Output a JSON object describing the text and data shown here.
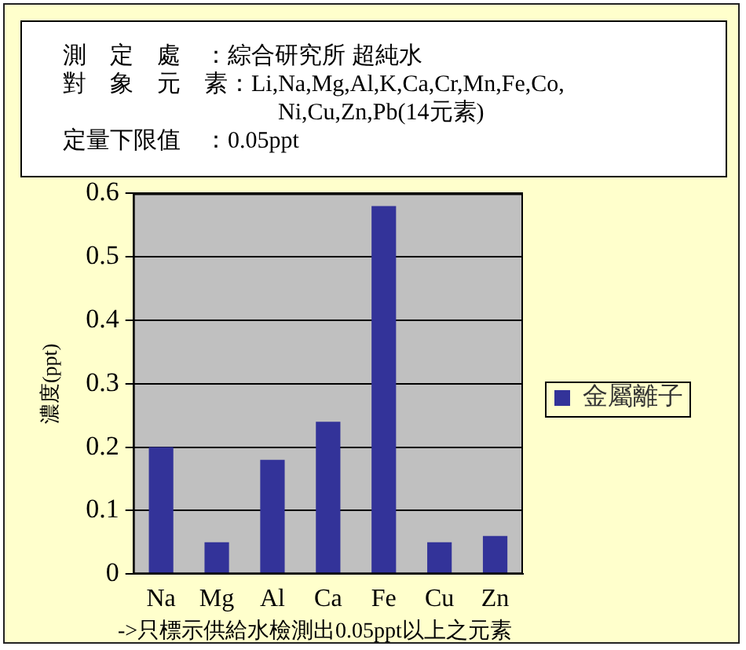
{
  "chart_data": {
    "type": "bar",
    "categories": [
      "Na",
      "Mg",
      "Al",
      "Ca",
      "Fe",
      "Cu",
      "Zn"
    ],
    "series": [
      {
        "name": "金屬離子",
        "color": "#333399",
        "values": [
          0.2,
          0.05,
          0.18,
          0.24,
          0.58,
          0.05,
          0.06
        ]
      }
    ],
    "ylabel": "濃度(ppt)",
    "ylim": [
      0,
      0.6
    ],
    "yticks": [
      0,
      0.1,
      0.2,
      0.3,
      0.4,
      0.5,
      0.6
    ],
    "grid": "y",
    "legend": "right",
    "annotations": [
      "測　定　處　：綜合研究所 超純水",
      "對　象　元　素：Li,Na,Mg,Al,K,Ca,Cr,Mn,Fe,Co,Ni,Cu,Zn,Pb(14元素)",
      "定量下限值　：0.05ppt",
      "->只標示供給水檢測出0.05ppt以上之元素"
    ]
  }
}
